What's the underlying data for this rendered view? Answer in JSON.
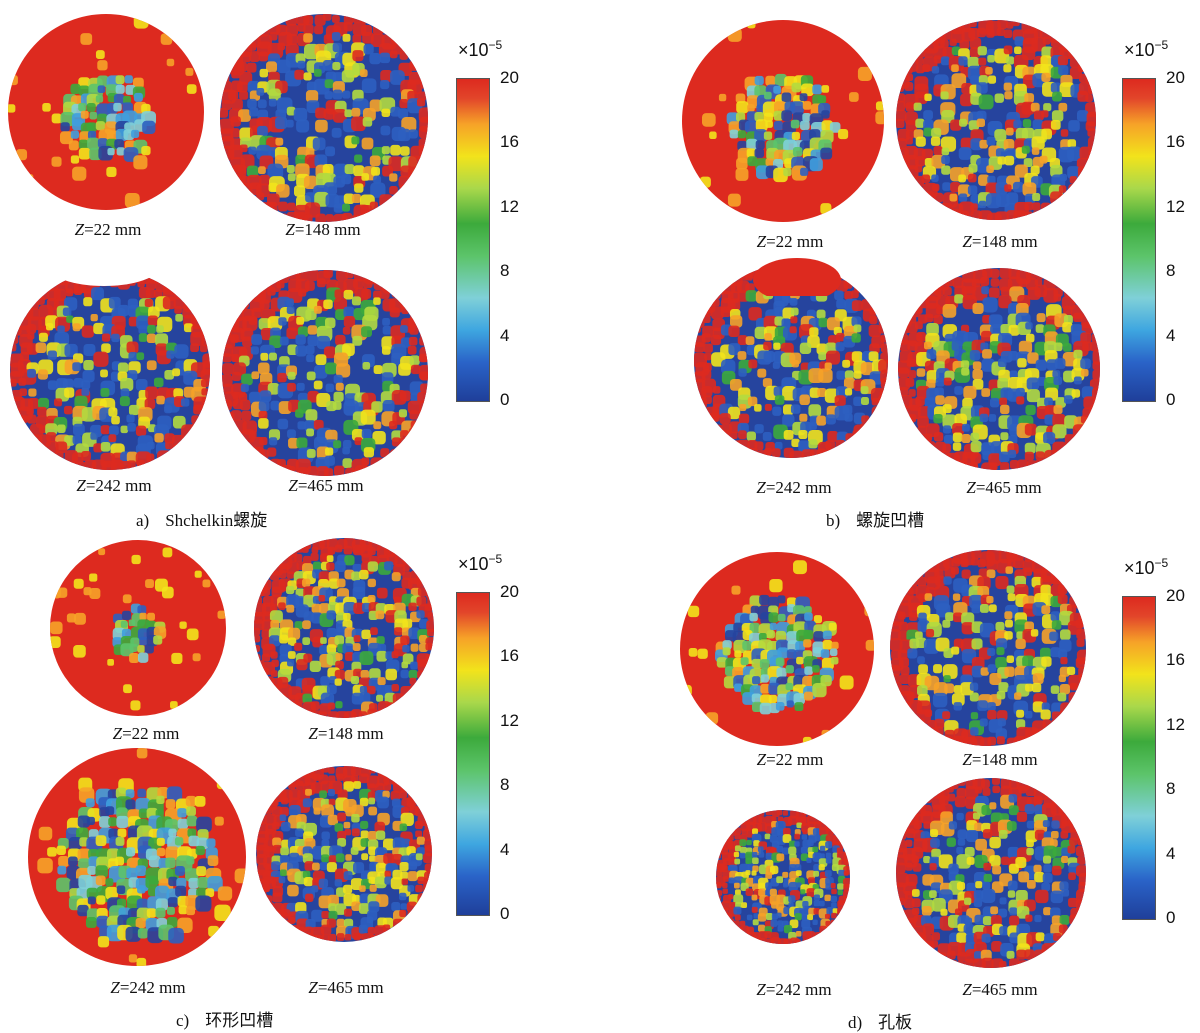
{
  "panels": [
    {
      "letter": "a)",
      "title": "Shchelkin螺旋",
      "z_labels": [
        "Z=22 mm",
        "Z=148 mm",
        "Z=242 mm",
        "Z=465 mm"
      ]
    },
    {
      "letter": "b)",
      "title": "螺旋凹槽",
      "z_labels": [
        "Z=22 mm",
        "Z=148 mm",
        "Z=242 mm",
        "Z=465 mm"
      ]
    },
    {
      "letter": "c)",
      "title": "环形凹槽",
      "z_labels": [
        "Z=22 mm",
        "Z=148 mm",
        "Z=242 mm",
        "Z=465 mm"
      ]
    },
    {
      "letter": "d)",
      "title": "孔板",
      "z_labels": [
        "Z=22 mm",
        "Z=148 mm",
        "Z=242 mm",
        "Z=465 mm"
      ]
    }
  ],
  "colorbar": {
    "scale_base": "×10",
    "scale_exp": "−5",
    "ticks": [
      "20",
      "16",
      "12",
      "8",
      "4",
      "0"
    ],
    "min": 0,
    "max": 20
  },
  "colors": {
    "high": "#dd2a1f",
    "low": "#26449e",
    "mid_green": "#3caa3c",
    "mid_cyan": "#4bb8e0",
    "yellow": "#f2e31b"
  }
}
